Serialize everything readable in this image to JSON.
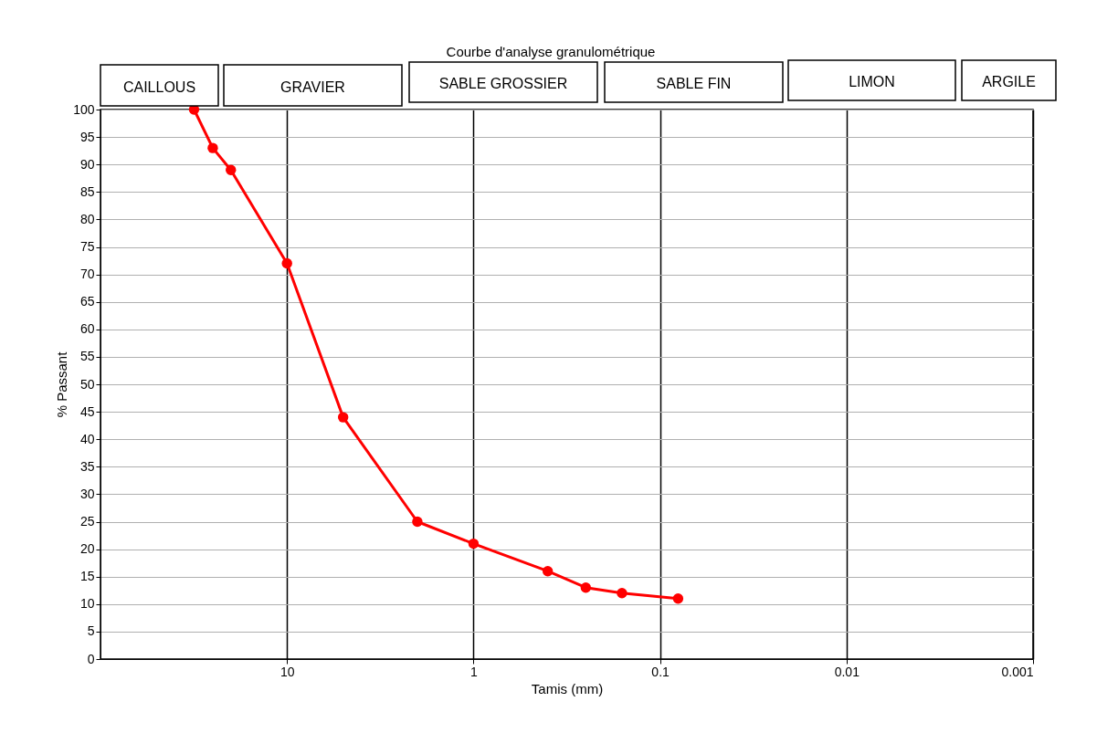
{
  "chart_data": {
    "type": "line",
    "title": "Courbe d'analyse granulométrique",
    "xlabel": "Tamis (mm)",
    "ylabel": "% Passant",
    "x": [
      31.5,
      25,
      20,
      10,
      5,
      2,
      1,
      0.4,
      0.25,
      0.16,
      0.08
    ],
    "series": [
      {
        "color": "#ff0000",
        "values": [
          100,
          93,
          89,
          72,
          44,
          25,
          21,
          16,
          13,
          12,
          11
        ]
      }
    ],
    "xlim": [
      100,
      0.001
    ],
    "xticks": [
      10,
      1,
      0.1,
      0.01,
      0.001
    ],
    "log": "x",
    "ylim": [
      0,
      100
    ],
    "yticks": [
      0,
      5,
      10,
      15,
      20,
      25,
      30,
      35,
      40,
      45,
      50,
      55,
      60,
      65,
      70,
      75,
      80,
      85,
      90,
      95,
      100
    ],
    "grid": true,
    "marker": "circle",
    "line_style": "solid",
    "annotations": [
      "CAILLOUS",
      "GRAVIER",
      "SABLE GROSSIER",
      "SABLE FIN",
      "LIMON",
      "ARGILE"
    ]
  }
}
